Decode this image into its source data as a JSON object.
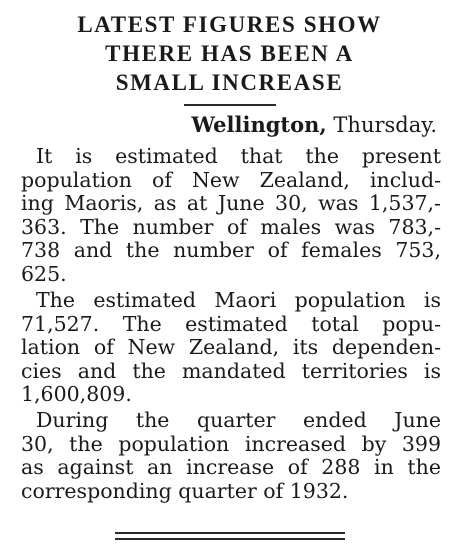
{
  "headline": {
    "line1": "LATEST FIGURES SHOW",
    "line2": "THERE HAS BEEN A",
    "line3": "SMALL INCREASE"
  },
  "dateline": {
    "place": "Wellington,",
    "day": "Thursday."
  },
  "paragraphs": [
    {
      "lines": [
        "It is estimated that the present",
        "population of New Zealand, includ-",
        "ing Maoris, as at June 30, was 1,537,-",
        "363. The number of males was 783,-",
        "738 and the number of females 753,",
        "625."
      ]
    },
    {
      "lines": [
        "The estimated Maori population is",
        "71,527. The estimated total popu-",
        "lation of New Zealand, its dependen-",
        "cies and the mandated territories is",
        "1,600,809."
      ]
    },
    {
      "lines": [
        "During the quarter ended June",
        "30, the population increased by 399",
        "as against an increase of 288 in the",
        "corresponding quarter of 1932."
      ]
    }
  ]
}
